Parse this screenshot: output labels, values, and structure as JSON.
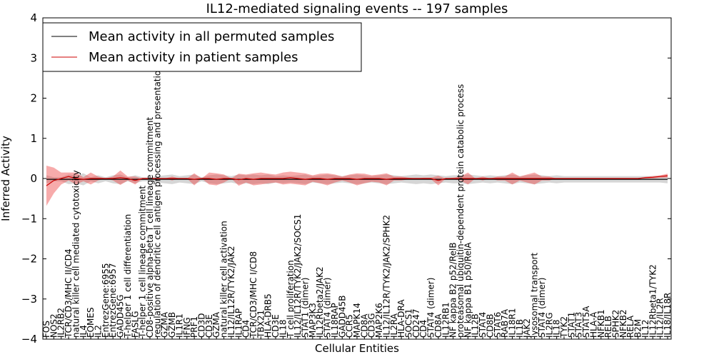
{
  "chart_data": {
    "type": "line",
    "title": "IL12-mediated signaling events -- 197 samples",
    "xlabel": "Cellular Entities",
    "ylabel": "Inferred Activity",
    "ylim": [
      -4,
      4
    ],
    "yticks": [
      -4,
      -3,
      -2,
      -1,
      0,
      1,
      2,
      3,
      4
    ],
    "legend_position": "top-left",
    "categories": [
      "FOS",
      "NOS2",
      "IL2RB2",
      "TCR/CD3/MHC II/CD4",
      "natural killer cell mediated cytotoxicity",
      "IL4",
      "EOMES",
      "IL2",
      "EntrezGene:6955",
      "EntrezGene:6957",
      "GADD45G",
      "T-helper 1 cell differentiation",
      "FASLG",
      "T-helper 1 cell lineage commitment",
      "CD8-positive alpha-beta T cell lineage commitment",
      "regulation of dendritic cell antigen processing and presentation",
      "GZMA",
      "GZMB",
      "IL1R1",
      "IFNG",
      "PRF1",
      "CD3D",
      "CD3E",
      "GZMA",
      "natural killer cell activation",
      "IL12/IL12R/TYK2/JAK2",
      "IL1RAP",
      "CD4",
      "TCR/CD3/MHC I/CD8",
      "TBX21",
      "HLA-DRB5",
      "CD3E",
      "IL18",
      "T cell proliferation",
      "IL12/IL12R/TYK2/JAK2/SOCS1",
      "STAT1 (dimer)",
      "MAP3K3",
      "IL12Rbeta2/JAK2",
      "STAT4 (dimer)",
      "IL18RAP",
      "GADD45B",
      "CCR5",
      "MAPK14",
      "CD8A",
      "CD3G",
      "MAP2K6",
      "IL12/IL12R/TYK2/JAK2/SPHK2",
      "IL2RA",
      "HLA-DRA",
      "SOCS1",
      "CD247",
      "CD4",
      "STAT4 (dimer)",
      "CD8A",
      "IL12RB1",
      "NF kappa B2 p52/RelB",
      "proteasomal ubiquitin-dependent protein catabolic process",
      "NF kappa B1 p50/RelA",
      "IL12B",
      "STAT4",
      "CD8B",
      "STAT6",
      "RAB7A",
      "IL18R1",
      "IL1B",
      "JAK2",
      "lysosomal transport",
      "STAT4 (dimer)",
      "IL2RG",
      "IL18",
      "TYK2",
      "STAT1",
      "STAT3",
      "STAT5A",
      "HLA-A",
      "NFKB1",
      "RELB",
      "SPHK2",
      "NFKB2",
      "RELA",
      "B2M",
      "IL12",
      "IL12Rbeta1/TYK2",
      "IL12/IL2R",
      "IL18/IL18R"
    ],
    "series": [
      {
        "name": "Mean activity in all permuted samples",
        "color": "#000000",
        "values": [
          -0.02,
          -0.02,
          -0.02,
          -0.02,
          -0.02,
          -0.02,
          -0.02,
          -0.02,
          -0.02,
          -0.02,
          -0.02,
          -0.02,
          -0.02,
          -0.02,
          -0.02,
          -0.02,
          -0.02,
          -0.02,
          -0.02,
          -0.02,
          -0.02,
          -0.02,
          -0.02,
          -0.02,
          -0.02,
          -0.02,
          -0.02,
          -0.02,
          -0.02,
          -0.02,
          -0.02,
          -0.02,
          -0.02,
          -0.02,
          -0.02,
          -0.02,
          -0.02,
          -0.02,
          -0.02,
          -0.02,
          -0.02,
          -0.02,
          -0.02,
          -0.02,
          -0.02,
          -0.02,
          -0.02,
          -0.02,
          -0.02,
          -0.02,
          -0.02,
          -0.02,
          -0.02,
          -0.02,
          -0.02,
          -0.02,
          -0.02,
          -0.02,
          -0.02,
          -0.02,
          -0.02,
          -0.02,
          -0.02,
          -0.02,
          -0.02,
          -0.02,
          -0.02,
          -0.02,
          -0.02,
          -0.02,
          -0.02,
          -0.02,
          -0.02,
          -0.02,
          -0.02,
          -0.02,
          -0.02,
          -0.02,
          -0.02,
          -0.02,
          -0.02,
          -0.02,
          -0.02,
          -0.02,
          -0.02
        ],
        "band": [
          0.1,
          0.05,
          0.05,
          0.12,
          0.1,
          0.15,
          0.05,
          0.1,
          0.05,
          0.1,
          0.12,
          0.05,
          0.1,
          0.05,
          0.05,
          0.08,
          0.1,
          0.12,
          0.08,
          0.1,
          0.12,
          0.05,
          0.1,
          0.12,
          0.1,
          0.08,
          0.12,
          0.1,
          0.12,
          0.1,
          0.12,
          0.08,
          0.1,
          0.08,
          0.1,
          0.12,
          0.08,
          0.1,
          0.12,
          0.1,
          0.08,
          0.1,
          0.12,
          0.1,
          0.08,
          0.1,
          0.12,
          0.1,
          0.08,
          0.1,
          0.12,
          0.1,
          0.12,
          0.1,
          0.08,
          0.1,
          0.1,
          0.12,
          0.1,
          0.08,
          0.1,
          0.08,
          0.1,
          0.12,
          0.08,
          0.1,
          0.12,
          0.1,
          0.08,
          0.1,
          0.08,
          0.08,
          0.08,
          0.08,
          0.08,
          0.08,
          0.08,
          0.08,
          0.08,
          0.08,
          0.08,
          0.08,
          0.08,
          0.08,
          0.1
        ]
      },
      {
        "name": "Mean activity in patient samples",
        "color": "#cc0000",
        "values": [
          -0.18,
          -0.05,
          0.0,
          0.05,
          0.0,
          -0.02,
          0.0,
          0.0,
          0.0,
          0.0,
          0.02,
          0.0,
          -0.05,
          0.0,
          0.0,
          0.0,
          0.0,
          0.0,
          0.0,
          0.0,
          -0.02,
          0.0,
          0.0,
          -0.02,
          0.0,
          0.0,
          -0.03,
          0.0,
          -0.02,
          0.0,
          0.0,
          0.0,
          0.0,
          0.02,
          0.0,
          -0.02,
          0.0,
          0.0,
          -0.02,
          0.0,
          0.0,
          0.0,
          -0.02,
          0.0,
          0.0,
          0.0,
          -0.02,
          0.0,
          0.0,
          0.0,
          0.0,
          0.0,
          0.0,
          -0.05,
          0.0,
          0.0,
          0.0,
          0.0,
          0.0,
          0.0,
          0.0,
          0.0,
          0.0,
          0.0,
          0.0,
          0.0,
          0.0,
          0.0,
          0.0,
          0.0,
          0.0,
          0.0,
          0.0,
          0.0,
          0.0,
          0.0,
          0.0,
          0.0,
          0.0,
          0.0,
          0.0,
          0.02,
          0.03,
          0.05,
          0.07
        ],
        "band": [
          0.5,
          0.32,
          0.15,
          0.1,
          0.15,
          0.05,
          0.15,
          0.05,
          0.0,
          0.05,
          0.18,
          0.05,
          0.1,
          0.0,
          0.0,
          0.0,
          0.0,
          0.05,
          0.0,
          0.0,
          0.15,
          0.0,
          0.15,
          0.15,
          0.1,
          0.0,
          0.15,
          0.1,
          0.15,
          0.15,
          0.12,
          0.1,
          0.15,
          0.15,
          0.15,
          0.15,
          0.08,
          0.12,
          0.15,
          0.1,
          0.05,
          0.1,
          0.15,
          0.12,
          0.08,
          0.1,
          0.15,
          0.05,
          0.05,
          0.02,
          0.0,
          0.02,
          0.02,
          0.12,
          0.0,
          0.02,
          0.05,
          0.15,
          0.0,
          0.05,
          0.0,
          0.05,
          0.05,
          0.15,
          0.05,
          0.1,
          0.15,
          0.05,
          0.05,
          0.0,
          0.0,
          0.0,
          0.0,
          0.0,
          0.0,
          0.0,
          0.0,
          0.0,
          0.0,
          0.0,
          0.0,
          0.02,
          0.03,
          0.03,
          0.05
        ]
      }
    ]
  }
}
